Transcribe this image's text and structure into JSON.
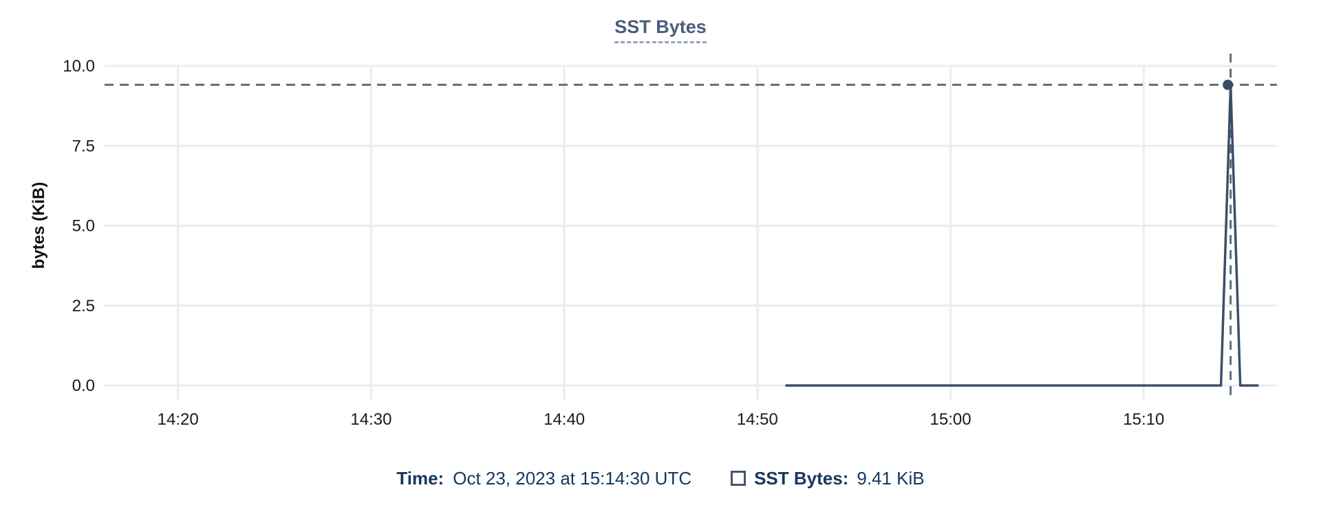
{
  "chart_data": {
    "type": "line",
    "title": "SST Bytes",
    "xlabel": "",
    "ylabel": "bytes (KiB)",
    "x_unit": "minutes since 14:00 UTC",
    "xlim": [
      16.2,
      76.9
    ],
    "ylim": [
      0,
      10
    ],
    "grid": true,
    "x_ticks": [
      {
        "minutes": 20,
        "label": "14:20"
      },
      {
        "minutes": 30,
        "label": "14:30"
      },
      {
        "minutes": 40,
        "label": "14:40"
      },
      {
        "minutes": 50,
        "label": "14:50"
      },
      {
        "minutes": 60,
        "label": "15:00"
      },
      {
        "minutes": 70,
        "label": "15:10"
      }
    ],
    "y_ticks": [
      {
        "value": 10,
        "label": "10.0"
      },
      {
        "value": 7.5,
        "label": "7.5"
      },
      {
        "value": 5,
        "label": "5.0"
      },
      {
        "value": 2.5,
        "label": "2.5"
      },
      {
        "value": 0,
        "label": "0.0"
      }
    ],
    "series": [
      {
        "name": "SST Bytes",
        "unit": "KiB",
        "points_minutes_kib": [
          [
            51.5,
            0
          ],
          [
            74.0,
            0
          ],
          [
            74.5,
            9.41
          ],
          [
            75.0,
            0
          ],
          [
            75.9,
            0
          ]
        ]
      }
    ],
    "crosshair": {
      "x_minutes": 74.5,
      "y_kib": 9.41,
      "time": "15:14:30",
      "value_label": "9.41 KiB"
    },
    "legend_position": "bottom"
  },
  "footer": {
    "time_label": "Time:",
    "time_value": "Oct 23, 2023 at 15:14:30 UTC",
    "series_label": "SST Bytes:",
    "series_value": "9.41 KiB"
  },
  "colors": {
    "title_text": "#4c5d7e",
    "title_underline": "#95a3ba",
    "series_line": "#3d4e68",
    "marker_dot": "#3b4c66",
    "crosshair_dash": "#587080",
    "grid_line": "#ececec",
    "tick_text": "#1a1a1a",
    "footer_text": "#16365f",
    "background": "#ffffff"
  }
}
